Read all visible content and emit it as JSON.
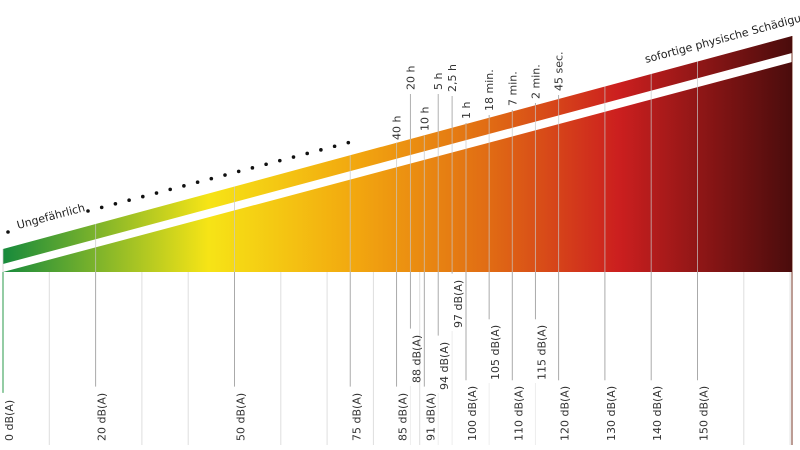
{
  "diagram": {
    "safe_label": "Ungefährlich",
    "damage_label": "sofortige physische Schädigung",
    "gradient_colors": [
      "#178a3c",
      "#f6e416",
      "#f2a60f",
      "#e06a14",
      "#cc1f1f",
      "#4a0c0c"
    ],
    "db_levels": [
      {
        "db": 0,
        "label": "0 dB(A)"
      },
      {
        "db": 20,
        "label": "20 dB(A)"
      },
      {
        "db": 50,
        "label": "50 dB(A)"
      },
      {
        "db": 75,
        "label": "75 dB(A)"
      },
      {
        "db": 85,
        "label": "85 dB(A)"
      },
      {
        "db": 88,
        "label": "88 dB(A)"
      },
      {
        "db": 91,
        "label": "91 dB(A)"
      },
      {
        "db": 94,
        "label": "94 dB(A)"
      },
      {
        "db": 97,
        "label": "97 dB(A)"
      },
      {
        "db": 100,
        "label": "100 dB(A)"
      },
      {
        "db": 105,
        "label": "105 dB(A)"
      },
      {
        "db": 110,
        "label": "110 dB(A)"
      },
      {
        "db": 115,
        "label": "115 dB(A)"
      },
      {
        "db": 120,
        "label": "120 dB(A)"
      },
      {
        "db": 130,
        "label": "130 dB(A)"
      },
      {
        "db": 140,
        "label": "140 dB(A)"
      },
      {
        "db": 150,
        "label": "150 dB(A)"
      }
    ],
    "exposure_times": [
      {
        "db": 85,
        "label": "40 h"
      },
      {
        "db": 88,
        "label": "20 h"
      },
      {
        "db": 91,
        "label": "10 h"
      },
      {
        "db": 94,
        "label": "5 h"
      },
      {
        "db": 97,
        "label": "2,5 h"
      },
      {
        "db": 100,
        "label": "1 h"
      },
      {
        "db": 105,
        "label": "18 min."
      },
      {
        "db": 110,
        "label": "7 min."
      },
      {
        "db": 115,
        "label": "2 min."
      },
      {
        "db": 120,
        "label": "45 sec."
      }
    ]
  }
}
